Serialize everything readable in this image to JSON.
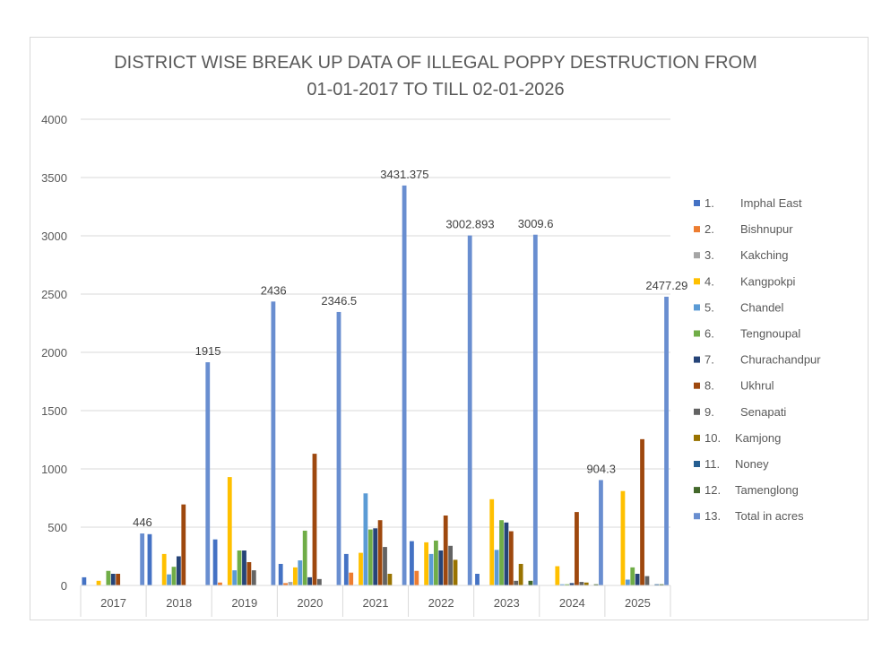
{
  "chart_data": {
    "type": "bar",
    "title": "DISTRICT WISE BREAK UP DATA OF ILLEGAL POPPY DESTRUCTION FROM",
    "subtitle": "01-01-2017 TO TILL 02-01-2026",
    "xlabel": "",
    "ylabel": "",
    "ylim": [
      0,
      4000
    ],
    "yticks": [
      0,
      500,
      1000,
      1500,
      2000,
      2500,
      3000,
      3500,
      4000
    ],
    "grid": true,
    "legend_position": "right",
    "categories": [
      "2017",
      "2018",
      "2019",
      "2020",
      "2021",
      "2022",
      "2023",
      "2024",
      "2025"
    ],
    "series": [
      {
        "index": "1.",
        "name": "Imphal East",
        "color": "#4472c4",
        "values": [
          70,
          440,
          395,
          185,
          270,
          380,
          100,
          0,
          0
        ]
      },
      {
        "index": "2.",
        "name": "Bishnupur",
        "color": "#ed7d31",
        "values": [
          0,
          0,
          25,
          20,
          110,
          125,
          0,
          0,
          0
        ]
      },
      {
        "index": "3.",
        "name": "Kakching",
        "color": "#a5a5a5",
        "values": [
          0,
          0,
          0,
          30,
          5,
          0,
          0,
          0,
          0
        ]
      },
      {
        "index": "4.",
        "name": "Kangpokpi",
        "color": "#ffc000",
        "values": [
          40,
          270,
          930,
          155,
          280,
          370,
          740,
          165,
          810
        ]
      },
      {
        "index": "5.",
        "name": "Chandel",
        "color": "#5b9bd5",
        "values": [
          0,
          95,
          130,
          215,
          790,
          270,
          305,
          10,
          50
        ]
      },
      {
        "index": "6.",
        "name": "Tengnoupal",
        "color": "#70ad47",
        "values": [
          125,
          160,
          300,
          470,
          480,
          385,
          560,
          10,
          155
        ]
      },
      {
        "index": "7.",
        "name": "Churachandpur",
        "color": "#264478",
        "values": [
          100,
          250,
          300,
          70,
          490,
          300,
          540,
          20,
          100
        ]
      },
      {
        "index": "8.",
        "name": "Ukhrul",
        "color": "#9e480e",
        "values": [
          100,
          695,
          200,
          1130,
          560,
          600,
          465,
          630,
          1255
        ]
      },
      {
        "index": "9.",
        "name": "Senapati",
        "color": "#636363",
        "values": [
          0,
          0,
          130,
          55,
          330,
          340,
          40,
          30,
          80
        ]
      },
      {
        "index": "10.",
        "name": "Kamjong",
        "color": "#997300",
        "values": [
          0,
          0,
          0,
          0,
          100,
          220,
          185,
          25,
          0
        ]
      },
      {
        "index": "11.",
        "name": "Noney",
        "color": "#255e91",
        "values": [
          0,
          0,
          0,
          0,
          0,
          0,
          5,
          0,
          10
        ]
      },
      {
        "index": "12.",
        "name": "Tamenglong",
        "color": "#43682b",
        "values": [
          0,
          0,
          0,
          0,
          0,
          0,
          40,
          10,
          10
        ]
      },
      {
        "index": "13.",
        "name": "Total in acres",
        "color": "#698ed0",
        "values": [
          446,
          1915,
          2436,
          2346.5,
          3431.375,
          3002.893,
          3009.6,
          904.3,
          2477.29
        ]
      }
    ],
    "data_labels": {
      "series": "Total in acres",
      "values": [
        "446",
        "1915",
        "2436",
        "2346.5",
        "3431.375",
        "3002.893",
        "3009.6",
        "904.3",
        "2477.29"
      ]
    }
  }
}
